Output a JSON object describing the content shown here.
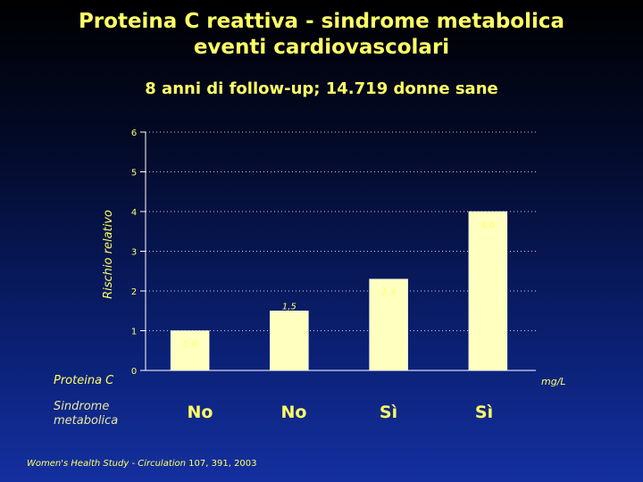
{
  "title_line1": "Proteina C reattiva - sindrome metabolica",
  "title_line2": "eventi cardiovascolari",
  "subtitle": "8 anni di follow-up; 14.719 donne sane",
  "row_labels": {
    "crp": "Proteina C",
    "metabolic_syndrome": "Sindrome metabolica"
  },
  "unit": "mg/L",
  "metabolic_syndrome_values": [
    "No",
    "No",
    "Sì",
    "Sì"
  ],
  "footnote": {
    "study": "Women's Health Study - Circulation",
    "citation": " 107, 391, 2003"
  },
  "colors": {
    "bar_fill": "#ffffc0",
    "text": "#ffff66",
    "axis": "#ffffff"
  },
  "chart_data": {
    "type": "bar",
    "categories": [
      "No",
      "No",
      "Sì",
      "Sì"
    ],
    "values": [
      1.0,
      1.5,
      2.3,
      4.0
    ],
    "value_labels": [
      "1,0",
      "1,5",
      "2,3",
      "4,0"
    ],
    "title": "8 anni di follow-up; 14.719 donne sane",
    "xlabel": "Proteina C",
    "ylabel": "Rischio relativo",
    "ylim": [
      0,
      6
    ],
    "yticks": [
      0,
      1,
      2,
      3,
      4,
      5,
      6
    ],
    "grid": true
  }
}
